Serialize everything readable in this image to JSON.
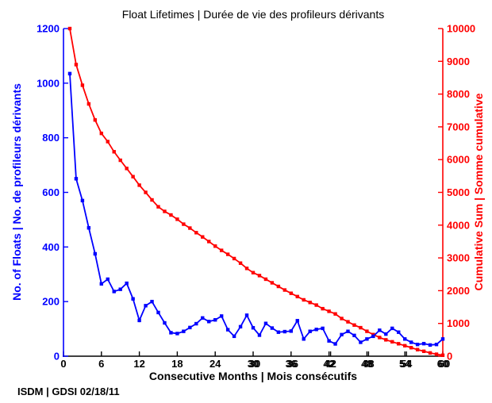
{
  "header": {
    "title": "Float Lifetimes | Durée de vie des profileurs dérivants"
  },
  "footer": {
    "text": "ISDM | GDSI 02/18/11"
  },
  "chart_data": {
    "type": "line",
    "title": "Float Lifetimes | Durée de vie des profileurs dérivants",
    "x": [
      1,
      2,
      3,
      4,
      5,
      6,
      7,
      8,
      9,
      10,
      11,
      12,
      13,
      14,
      15,
      16,
      17,
      18,
      19,
      20,
      21,
      22,
      23,
      24,
      25,
      26,
      27,
      28,
      29,
      30,
      31,
      32,
      33,
      34,
      35,
      36,
      37,
      38,
      39,
      40,
      41,
      42,
      43,
      44,
      45,
      46,
      47,
      48,
      49,
      50,
      51,
      52,
      53,
      54,
      55,
      56,
      57,
      58,
      59,
      60
    ],
    "series": [
      {
        "name": "No. of Floats | No. de profileurs dérivants",
        "axis": "left",
        "color": "#0000ff",
        "marker": "square",
        "values": [
          1035,
          650,
          570,
          470,
          375,
          265,
          282,
          237,
          245,
          267,
          210,
          131,
          185,
          200,
          160,
          122,
          86,
          83,
          91,
          105,
          119,
          140,
          127,
          133,
          147,
          97,
          73,
          108,
          150,
          104,
          77,
          120,
          103,
          88,
          90,
          92,
          130,
          63,
          91,
          98,
          102,
          56,
          45,
          79,
          91,
          76,
          51,
          63,
          73,
          95,
          81,
          102,
          88,
          63,
          51,
          43,
          46,
          41,
          43,
          63
        ]
      },
      {
        "name": "Cumulative Sum | Somme cumulative",
        "axis": "right",
        "color": "#ff0000",
        "marker": "square",
        "values": [
          10000,
          8900,
          8270,
          7700,
          7210,
          6800,
          6550,
          6240,
          5980,
          5730,
          5480,
          5220,
          5000,
          4770,
          4560,
          4420,
          4310,
          4180,
          4030,
          3910,
          3770,
          3640,
          3500,
          3360,
          3230,
          3110,
          2980,
          2840,
          2680,
          2550,
          2460,
          2350,
          2240,
          2130,
          2020,
          1920,
          1820,
          1720,
          1640,
          1560,
          1450,
          1370,
          1290,
          1150,
          1050,
          950,
          870,
          760,
          660,
          570,
          500,
          440,
          380,
          320,
          260,
          200,
          150,
          100,
          60,
          30
        ]
      }
    ],
    "x_axis": {
      "label": "Consecutive Months | Mois consécutifs",
      "ticks": [
        0,
        6,
        12,
        18,
        24,
        30,
        36,
        42,
        48,
        54,
        60
      ],
      "range": [
        0,
        60
      ],
      "color": "#000000"
    },
    "left_axis": {
      "label": "No. of Floats | No. de profileurs dérivants",
      "ticks": [
        0,
        200,
        400,
        600,
        800,
        1000,
        1200
      ],
      "range": [
        0,
        1200
      ],
      "color": "#0000ff"
    },
    "right_axis": {
      "label": "Cumulative Sum | Somme cumulative",
      "ticks": [
        0,
        1000,
        2000,
        3000,
        4000,
        5000,
        6000,
        7000,
        8000,
        9000,
        10000
      ],
      "range": [
        0,
        10000
      ],
      "color": "#ff0000"
    },
    "grid": false,
    "legend": "none"
  }
}
